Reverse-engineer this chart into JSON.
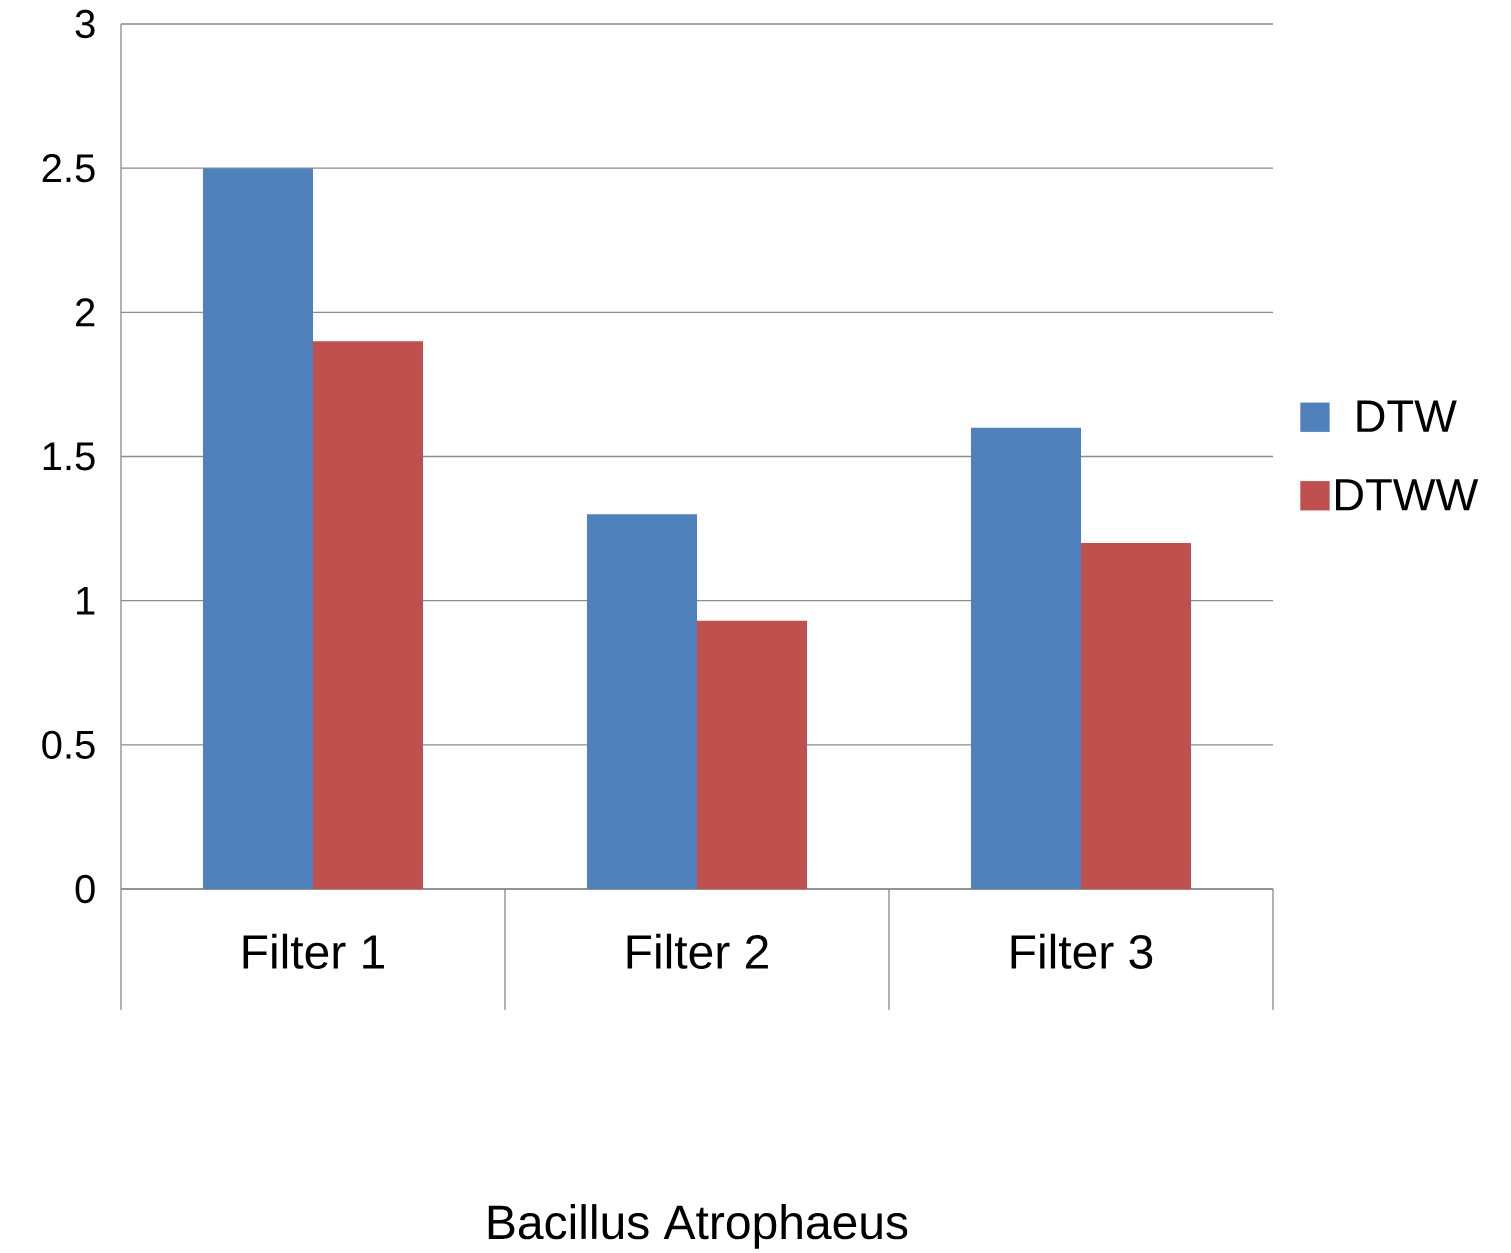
{
  "chart_data": {
    "type": "bar",
    "xlabel": "Bacillus Atrophaeus",
    "categories": [
      "Filter 1",
      "Filter 2",
      "Filter 3"
    ],
    "series": [
      {
        "name": "DTW",
        "color": "#4f81bd",
        "values": [
          2.5,
          1.3,
          1.6
        ]
      },
      {
        "name": "DTWW",
        "color": "#c0504d",
        "values": [
          1.9,
          0.93,
          1.2
        ]
      }
    ],
    "ylim": [
      0,
      3
    ],
    "yticks": [
      0,
      0.5,
      1,
      1.5,
      2,
      2.5,
      3
    ],
    "grid": "y",
    "legend": "right"
  }
}
